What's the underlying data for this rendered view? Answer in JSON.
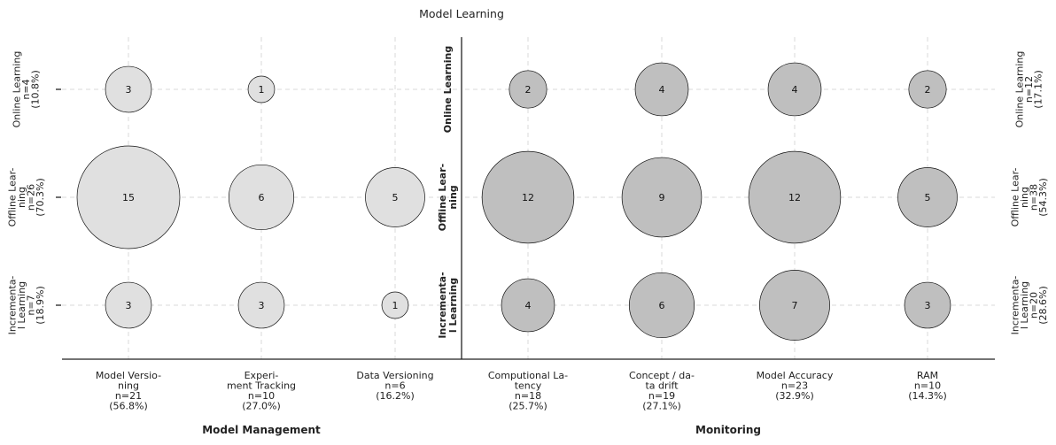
{
  "chart_data": {
    "type": "bubble",
    "title": "Model Learning",
    "groups": [
      "Model Management",
      "Monitoring"
    ],
    "rows": [
      "Online Learning",
      "Offline Learning",
      "Incremental Learning"
    ],
    "row_labels_middle": [
      [
        "Online Learning"
      ],
      [
        "Offline Lear-",
        "ning"
      ],
      [
        "Incrementa-",
        "l Learning"
      ]
    ],
    "left_row_labels": [
      [
        "Online Learning",
        "n=4",
        "(10.8%)"
      ],
      [
        "Offline Lear-",
        "ning",
        "n=26",
        "(70.3%)"
      ],
      [
        "Incrementa-",
        "l Learning",
        "n=7",
        "(18.9%)"
      ]
    ],
    "right_row_labels": [
      [
        "Online Learning",
        "n=12",
        "(17.1%)"
      ],
      [
        "Offline Lear-",
        "ning",
        "n=38",
        "(54.3%)"
      ],
      [
        "Incrementa-",
        "l Learning",
        "n=20",
        "(28.6%)"
      ]
    ],
    "columns": [
      {
        "group": 0,
        "label": [
          "Model Versio-",
          "ning",
          "n=21",
          "(56.8%)"
        ],
        "values": [
          3,
          15,
          3
        ]
      },
      {
        "group": 0,
        "label": [
          "Experi-",
          "ment Tracking",
          "n=10",
          "(27.0%)"
        ],
        "values": [
          1,
          6,
          3
        ]
      },
      {
        "group": 0,
        "label": [
          "Data Versioning",
          "n=6",
          "(16.2%)"
        ],
        "values": [
          0,
          5,
          1
        ]
      },
      {
        "group": 1,
        "label": [
          "Computional La-",
          "tency",
          "n=18",
          "(25.7%)"
        ],
        "values": [
          2,
          12,
          4
        ]
      },
      {
        "group": 1,
        "label": [
          "Concept / da-",
          "ta drift",
          "n=19",
          "(27.1%)"
        ],
        "values": [
          4,
          9,
          6
        ]
      },
      {
        "group": 1,
        "label": [
          "Model Accuracy",
          "n=23",
          "(32.9%)"
        ],
        "values": [
          4,
          12,
          7
        ]
      },
      {
        "group": 1,
        "label": [
          "RAM",
          "n=10",
          "(14.3%)"
        ],
        "values": [
          2,
          5,
          3
        ]
      }
    ],
    "colors": [
      "#e0e0e0",
      "#bfbfbf"
    ],
    "grid": true
  }
}
